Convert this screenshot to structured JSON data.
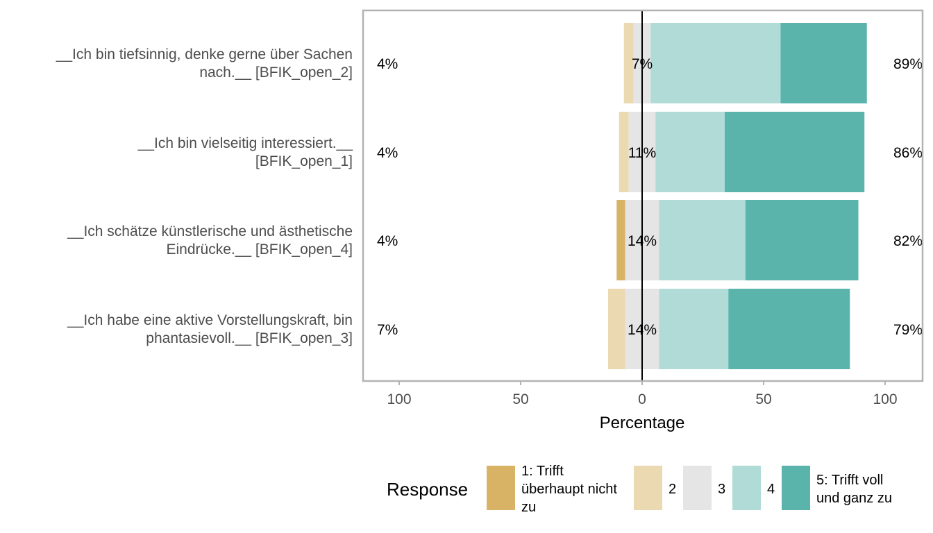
{
  "chart_data": {
    "type": "bar",
    "subtype": "diverging-stacked-likert",
    "xlabel": "Percentage",
    "xlim": [
      -100,
      100
    ],
    "xticks": [
      -100,
      -50,
      0,
      50,
      100
    ],
    "xtick_labels": [
      "100",
      "50",
      "0",
      "50",
      "100"
    ],
    "legend_title": "Response",
    "legend_position": "bottom",
    "series": [
      {
        "name": "1: Trifft überhaupt nicht zu",
        "name_lines": [
          "1: Trifft",
          "überhaupt nicht",
          "zu"
        ],
        "color": "#D8B365"
      },
      {
        "name": "2",
        "name_lines": [
          "2"
        ],
        "color": "#EBD9B2"
      },
      {
        "name": "3",
        "name_lines": [
          "3"
        ],
        "color": "#E5E5E5"
      },
      {
        "name": "4",
        "name_lines": [
          "4"
        ],
        "color": "#B0DBD7"
      },
      {
        "name": "5: Trifft voll und ganz zu",
        "name_lines": [
          "5: Trifft voll",
          "und ganz zu"
        ],
        "color": "#5AB4AC"
      }
    ],
    "items": [
      {
        "label": "__Ich bin tiefsinnig, denke gerne über Sachen nach.__ [BFIK_open_2]",
        "label_lines": [
          "__Ich bin tiefsinnig, denke gerne über Sachen",
          "nach.__ [BFIK_open_2]"
        ],
        "values": [
          0,
          4,
          7,
          53.5,
          35.5
        ],
        "low_label": "4%",
        "neutral_label": "7%",
        "high_label": "89%"
      },
      {
        "label": "__Ich bin vielseitig interessiert.__ [BFIK_open_1]",
        "label_lines": [
          "__Ich bin vielseitig interessiert.__",
          "[BFIK_open_1]"
        ],
        "values": [
          0,
          4,
          11,
          28.5,
          57.5
        ],
        "low_label": "4%",
        "neutral_label": "11%",
        "high_label": "86%"
      },
      {
        "label": "__Ich schätze künstlerische und ästhetische Eindrücke.__ [BFIK_open_4]",
        "label_lines": [
          "__Ich schätze künstlerische und ästhetische",
          "Eindrücke.__ [BFIK_open_4]"
        ],
        "values": [
          3.5,
          0,
          14,
          35.5,
          46.5
        ],
        "low_label": "4%",
        "neutral_label": "14%",
        "high_label": "82%"
      },
      {
        "label": "__Ich habe eine aktive Vorstellungskraft, bin phantasievoll.__ [BFIK_open_3]",
        "label_lines": [
          "__Ich habe eine aktive Vorstellungskraft, bin",
          "phantasievoll.__ [BFIK_open_3]"
        ],
        "values": [
          0,
          7,
          14,
          28.5,
          50
        ],
        "low_label": "7%",
        "neutral_label": "14%",
        "high_label": "79%"
      }
    ]
  }
}
